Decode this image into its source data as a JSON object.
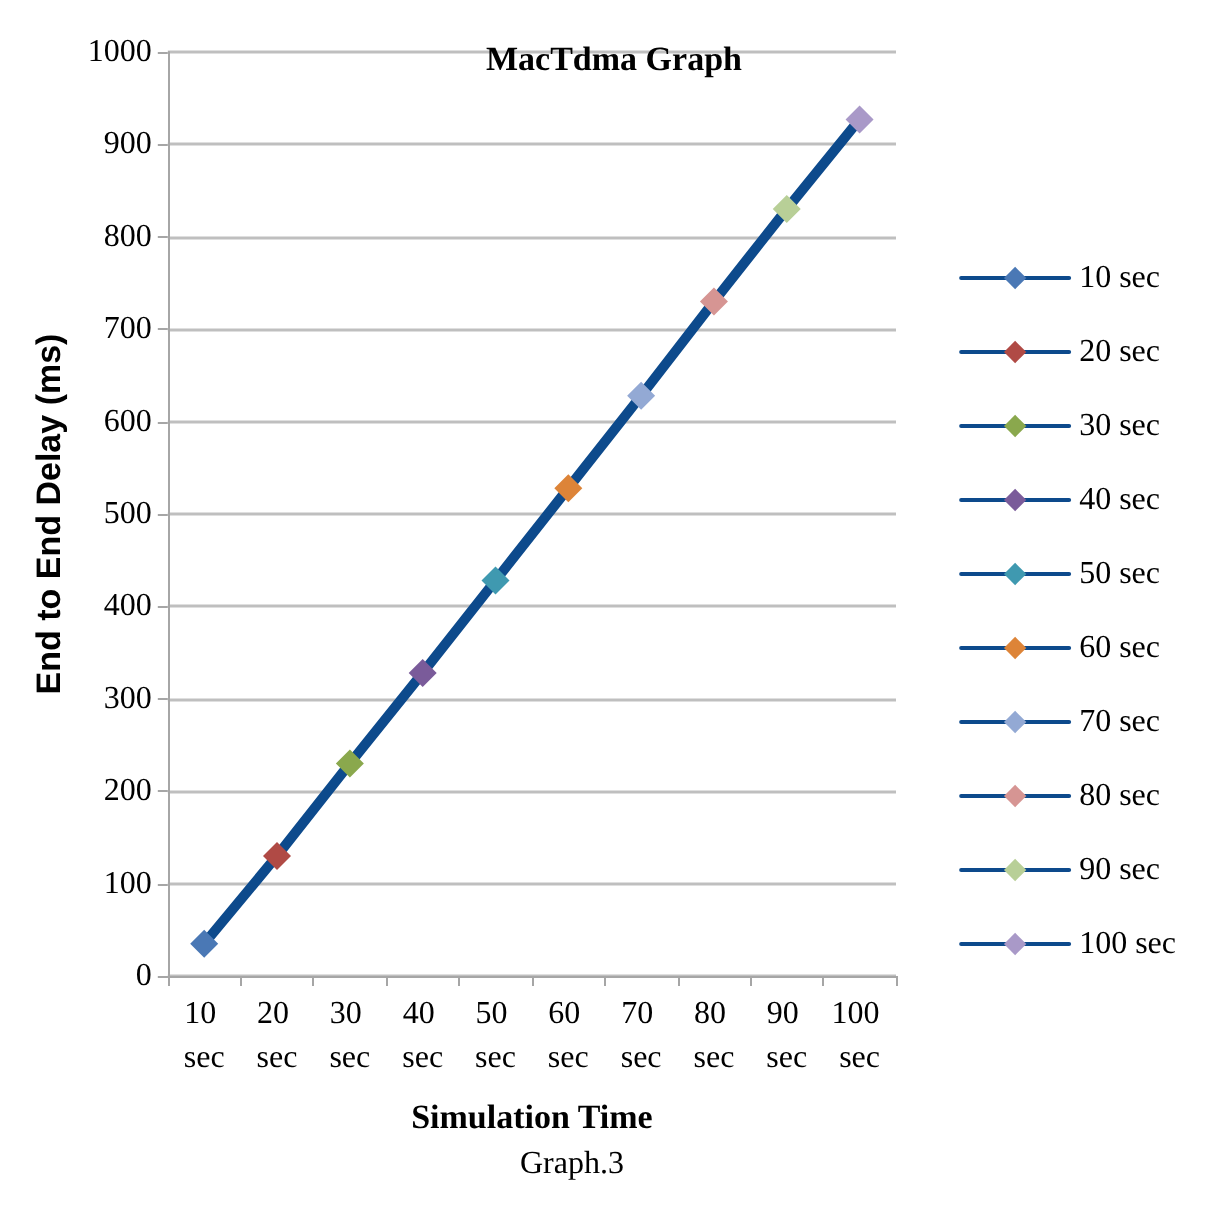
{
  "chart_data": {
    "type": "line",
    "title": "MacTdma Graph",
    "xlabel": "Simulation Time",
    "ylabel": "End to End Delay (ms)",
    "categories": [
      "10 sec",
      "20 sec",
      "30 sec",
      "40 sec",
      "50 sec",
      "60 sec",
      "70 sec",
      "80 sec",
      "90 sec",
      "100 sec"
    ],
    "series": [
      {
        "color": "#0d4a8c",
        "marker": "none",
        "values": [
          35,
          130,
          230,
          328,
          428,
          528,
          628,
          730,
          830,
          927
        ]
      },
      {
        "name": "10 sec",
        "color": "#4a78b5",
        "values": [
          35,
          null,
          null,
          null,
          null,
          null,
          null,
          null,
          null,
          null
        ]
      },
      {
        "name": "20 sec",
        "color": "#b04a45",
        "values": [
          null,
          130,
          null,
          null,
          null,
          null,
          null,
          null,
          null,
          null
        ]
      },
      {
        "name": "30 sec",
        "color": "#8aa84d",
        "values": [
          null,
          null,
          230,
          null,
          null,
          null,
          null,
          null,
          null,
          null
        ]
      },
      {
        "name": "40 sec",
        "color": "#7a5b9a",
        "values": [
          null,
          null,
          null,
          328,
          null,
          null,
          null,
          null,
          null,
          null
        ]
      },
      {
        "name": "50 sec",
        "color": "#3f99b0",
        "values": [
          null,
          null,
          null,
          null,
          428,
          null,
          null,
          null,
          null,
          null
        ]
      },
      {
        "name": "60 sec",
        "color": "#dd8438",
        "values": [
          null,
          null,
          null,
          null,
          null,
          528,
          null,
          null,
          null,
          null
        ]
      },
      {
        "name": "70 sec",
        "color": "#93a9d4",
        "values": [
          null,
          null,
          null,
          null,
          null,
          null,
          628,
          null,
          null,
          null
        ]
      },
      {
        "name": "80 sec",
        "color": "#d69593",
        "values": [
          null,
          null,
          null,
          null,
          null,
          null,
          null,
          730,
          null,
          null
        ]
      },
      {
        "name": "90 sec",
        "color": "#b8cf97",
        "values": [
          null,
          null,
          null,
          null,
          null,
          null,
          null,
          null,
          830,
          null
        ]
      },
      {
        "name": "100 sec",
        "color": "#a999c8",
        "values": [
          null,
          null,
          null,
          null,
          null,
          null,
          null,
          null,
          null,
          927
        ]
      }
    ],
    "ylim": [
      0,
      1000
    ],
    "yticks": [
      0,
      100,
      200,
      300,
      400,
      500,
      600,
      700,
      800,
      900,
      1000
    ],
    "grid": "y",
    "legend": "right",
    "marker": "diamond",
    "line_style": "solid",
    "annotations": [
      "Graph.3"
    ]
  }
}
